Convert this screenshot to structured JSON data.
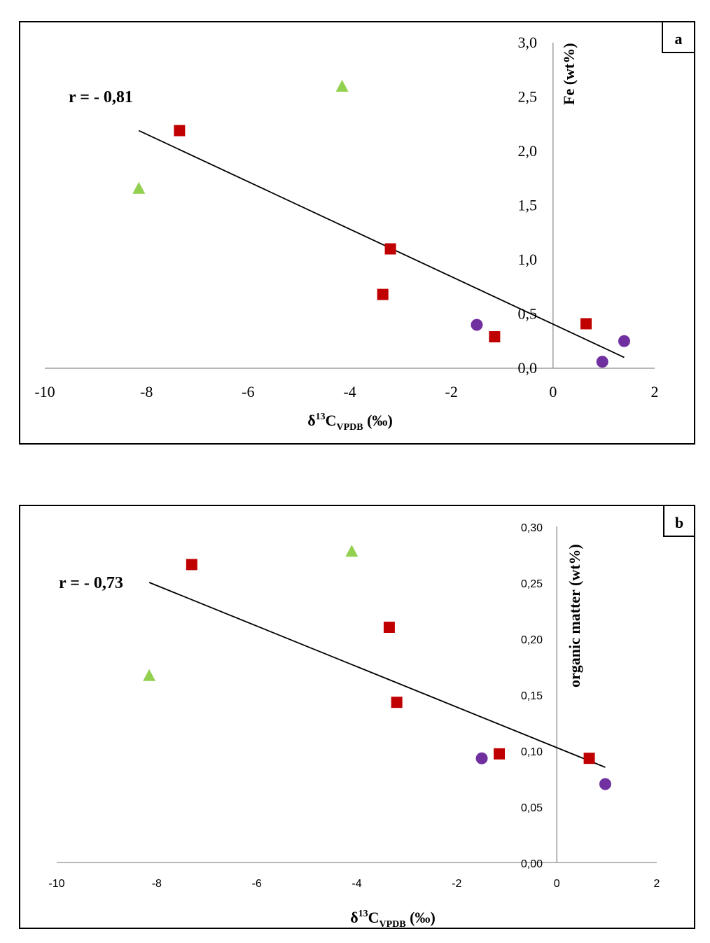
{
  "colors": {
    "square": "#c00000",
    "triangle": "#92d050",
    "circle": "#7030a0"
  },
  "chart_data": [
    {
      "type": "scatter",
      "panel": "a",
      "annotation": "r = - 0,81",
      "xlabel": "δ13CVPDB (‰)",
      "ylabel": "Fe (wt%)",
      "xlim": [
        -10,
        2
      ],
      "ylim": [
        0,
        3
      ],
      "x_ticks": [
        "-10",
        "-8",
        "-6",
        "-4",
        "-2",
        "0",
        "2"
      ],
      "y_ticks": [
        "0,0",
        "0,5",
        "1,0",
        "1,5",
        "2,0",
        "2,5",
        "3,0"
      ],
      "series": [
        {
          "marker": "square",
          "points": [
            [
              -7.35,
              2.19
            ],
            [
              -3.2,
              1.1
            ],
            [
              -3.35,
              0.68
            ],
            [
              -1.15,
              0.29
            ],
            [
              0.65,
              0.41
            ]
          ]
        },
        {
          "marker": "triangle",
          "points": [
            [
              -4.15,
              2.6
            ],
            [
              -8.15,
              1.66
            ]
          ]
        },
        {
          "marker": "circle",
          "points": [
            [
              -1.5,
              0.4
            ],
            [
              0.97,
              0.06
            ],
            [
              1.4,
              0.25
            ]
          ]
        }
      ],
      "trendline": [
        [
          -8.15,
          2.19
        ],
        [
          1.4,
          0.1
        ]
      ]
    },
    {
      "type": "scatter",
      "panel": "b",
      "annotation": "r = - 0,73",
      "xlabel": "δ13CVPDB (‰)",
      "ylabel": "organic matter (wt%)",
      "xlim": [
        -10,
        2
      ],
      "ylim": [
        0,
        0.3
      ],
      "x_ticks": [
        "-10",
        "-8",
        "-6",
        "-4",
        "-2",
        "0",
        "2"
      ],
      "y_ticks": [
        "0,00",
        "0,05",
        "0,10",
        "0,15",
        "0,20",
        "0,25",
        "0,30"
      ],
      "series": [
        {
          "marker": "square",
          "points": [
            [
              -7.3,
              0.266
            ],
            [
              -3.35,
              0.21
            ],
            [
              -3.2,
              0.143
            ],
            [
              -1.15,
              0.097
            ],
            [
              0.65,
              0.093
            ]
          ]
        },
        {
          "marker": "triangle",
          "points": [
            [
              -4.1,
              0.278
            ],
            [
              -8.15,
              0.167
            ]
          ]
        },
        {
          "marker": "circle",
          "points": [
            [
              -1.5,
              0.093
            ],
            [
              0.97,
              0.07
            ]
          ]
        }
      ],
      "trendline": [
        [
          -8.15,
          0.25
        ],
        [
          0.97,
          0.085
        ]
      ]
    }
  ]
}
